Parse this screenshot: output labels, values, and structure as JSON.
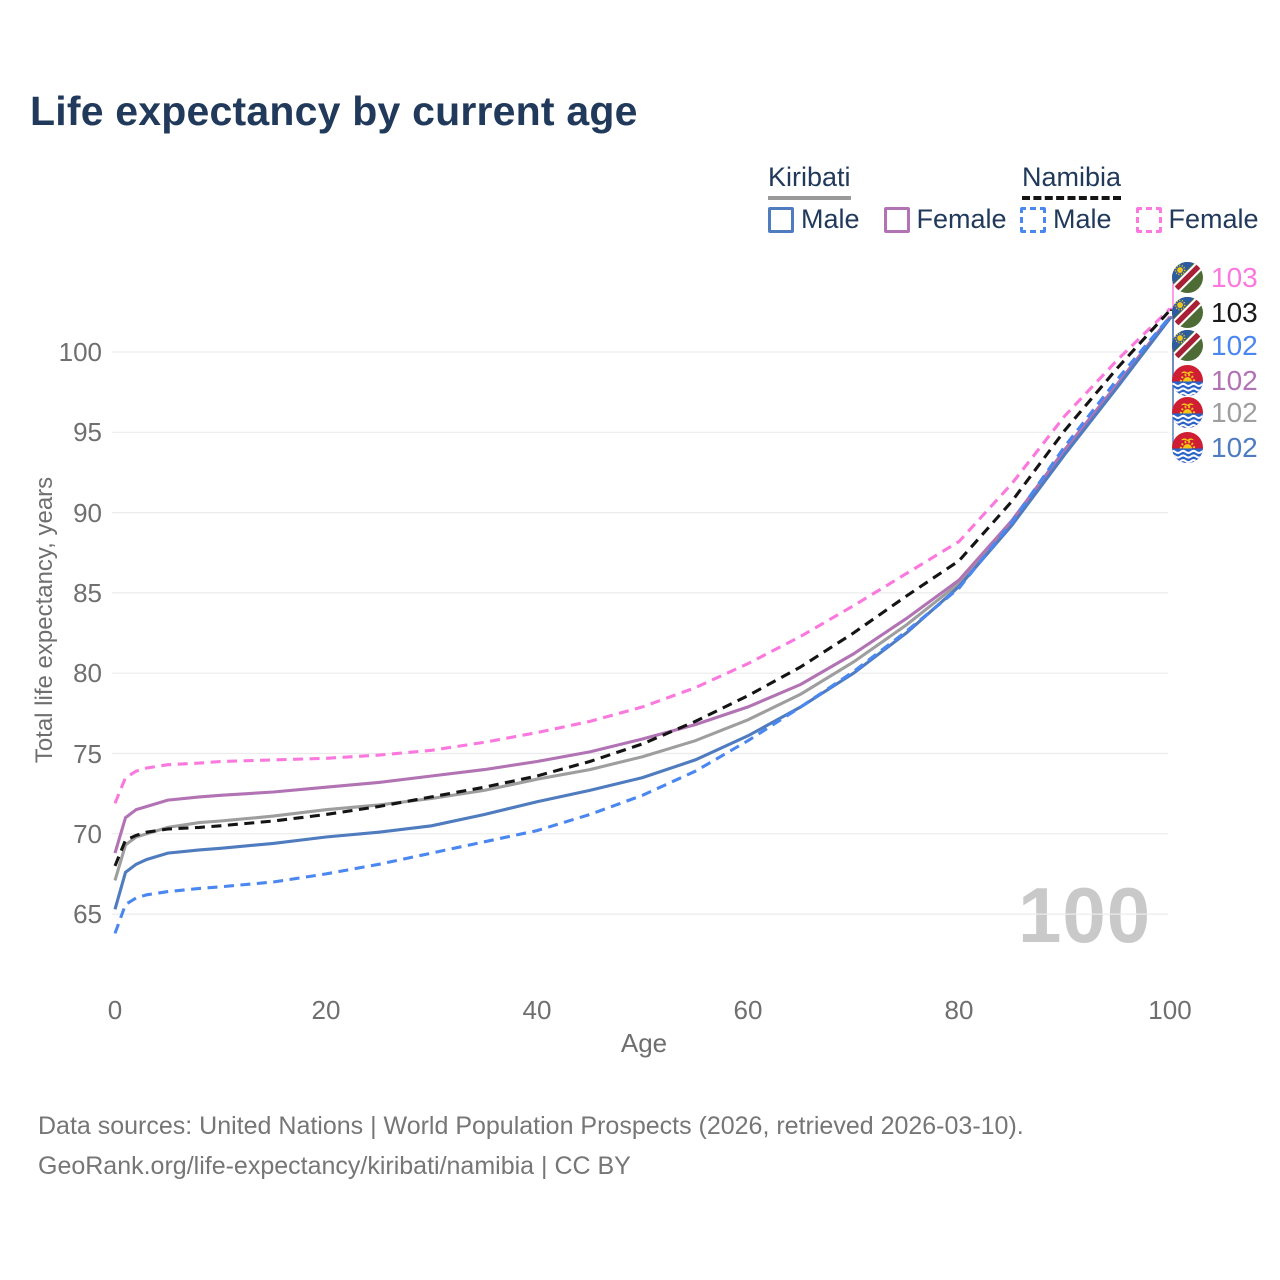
{
  "title": "Life expectancy by current age",
  "legend": {
    "groups": [
      {
        "name": "Kiribati",
        "line_style": "solid",
        "items": [
          {
            "label": "Male",
            "color": "#4f7bbf",
            "dashed": false
          },
          {
            "label": "Female",
            "color": "#b273b4",
            "dashed": false
          }
        ]
      },
      {
        "name": "Namibia",
        "line_style": "dashed",
        "items": [
          {
            "label": "Male",
            "color": "#4a87f0",
            "dashed": true
          },
          {
            "label": "Female",
            "color": "#fb78de",
            "dashed": true
          }
        ]
      }
    ]
  },
  "watermark": "100",
  "footer": {
    "line1": "Data sources: United Nations | World Population Prospects (2026, retrieved 2026-03-10).",
    "line2": "GeoRank.org/life-expectancy/kiribati/namibia | CC BY"
  },
  "chart_data": {
    "type": "line",
    "title": "Life expectancy by current age",
    "xlabel": "Age",
    "ylabel": "Total life expectancy, years",
    "xlim": [
      0,
      100
    ],
    "ylim": [
      63,
      104
    ],
    "x_ticks": [
      0,
      20,
      40,
      60,
      80,
      100
    ],
    "y_ticks": [
      65,
      70,
      75,
      80,
      85,
      90,
      95,
      100
    ],
    "grid": "horizontal",
    "x": [
      0,
      1,
      2,
      3,
      5,
      8,
      10,
      15,
      20,
      25,
      30,
      35,
      40,
      45,
      50,
      55,
      60,
      65,
      70,
      75,
      80,
      85,
      90,
      95,
      100
    ],
    "series": [
      {
        "id": "kiribati_total",
        "name": "Kiribati Both sexes",
        "country": "Kiribati",
        "sex": "Total",
        "color": "#9e9e9e",
        "dashed": false,
        "values": [
          67.1,
          69.3,
          69.8,
          70.0,
          70.4,
          70.7,
          70.8,
          71.1,
          71.5,
          71.8,
          72.2,
          72.7,
          73.4,
          74.0,
          74.8,
          75.8,
          77.1,
          78.7,
          80.7,
          83.0,
          85.6,
          89.3,
          93.7,
          97.9,
          102.1
        ]
      },
      {
        "id": "kiribati_female",
        "name": "Kiribati Female",
        "country": "Kiribati",
        "sex": "Female",
        "color": "#b273b4",
        "dashed": false,
        "values": [
          68.8,
          71.0,
          71.5,
          71.7,
          72.1,
          72.3,
          72.4,
          72.6,
          72.9,
          73.2,
          73.6,
          74.0,
          74.5,
          75.1,
          75.9,
          76.8,
          77.9,
          79.3,
          81.2,
          83.4,
          85.8,
          89.5,
          93.9,
          98.0,
          102.2
        ]
      },
      {
        "id": "kiribati_male",
        "name": "Kiribati Male",
        "country": "Kiribati",
        "sex": "Male",
        "color": "#4f7bbf",
        "dashed": false,
        "values": [
          65.3,
          67.6,
          68.1,
          68.4,
          68.8,
          69.0,
          69.1,
          69.4,
          69.8,
          70.1,
          70.5,
          71.2,
          72.0,
          72.7,
          73.5,
          74.6,
          76.1,
          77.9,
          80.0,
          82.5,
          85.4,
          89.2,
          93.6,
          97.8,
          102.1
        ]
      },
      {
        "id": "namibia_female",
        "name": "Namibia Female",
        "country": "Namibia",
        "sex": "Female",
        "color": "#fb78de",
        "dashed": true,
        "values": [
          71.9,
          73.5,
          73.9,
          74.1,
          74.3,
          74.4,
          74.5,
          74.6,
          74.7,
          74.9,
          75.2,
          75.7,
          76.3,
          77.0,
          77.9,
          79.1,
          80.6,
          82.3,
          84.2,
          86.2,
          88.2,
          91.8,
          96.0,
          99.5,
          102.7
        ]
      },
      {
        "id": "namibia_total",
        "name": "Namibia Both sexes",
        "country": "Namibia",
        "sex": "Total",
        "color": "#141414",
        "dashed": true,
        "values": [
          68.0,
          69.6,
          69.9,
          70.1,
          70.3,
          70.4,
          70.5,
          70.8,
          71.2,
          71.7,
          72.3,
          72.9,
          73.6,
          74.5,
          75.6,
          77.0,
          78.6,
          80.4,
          82.5,
          84.8,
          87.0,
          90.7,
          95.1,
          99.0,
          102.6
        ]
      },
      {
        "id": "namibia_male",
        "name": "Namibia Male",
        "country": "Namibia",
        "sex": "Male",
        "color": "#4a87f0",
        "dashed": true,
        "values": [
          63.8,
          65.6,
          66.0,
          66.2,
          66.4,
          66.6,
          66.7,
          67.0,
          67.5,
          68.1,
          68.8,
          69.5,
          70.2,
          71.2,
          72.4,
          73.9,
          75.8,
          77.9,
          80.1,
          82.6,
          85.3,
          89.4,
          94.1,
          98.3,
          102.2
        ]
      }
    ],
    "end_labels": [
      {
        "value": "103",
        "color": "#fb78de",
        "flag": "namibia",
        "series": "namibia_female"
      },
      {
        "value": "103",
        "color": "#1a1a1a",
        "flag": "namibia",
        "series": "namibia_total"
      },
      {
        "value": "102",
        "color": "#4a87f0",
        "flag": "namibia",
        "series": "namibia_male"
      },
      {
        "value": "102",
        "color": "#b273b4",
        "flag": "kiribati",
        "series": "kiribati_female"
      },
      {
        "value": "102",
        "color": "#9e9e9e",
        "flag": "kiribati",
        "series": "kiribati_total"
      },
      {
        "value": "102",
        "color": "#4f7bbf",
        "flag": "kiribati",
        "series": "kiribati_male"
      }
    ]
  }
}
